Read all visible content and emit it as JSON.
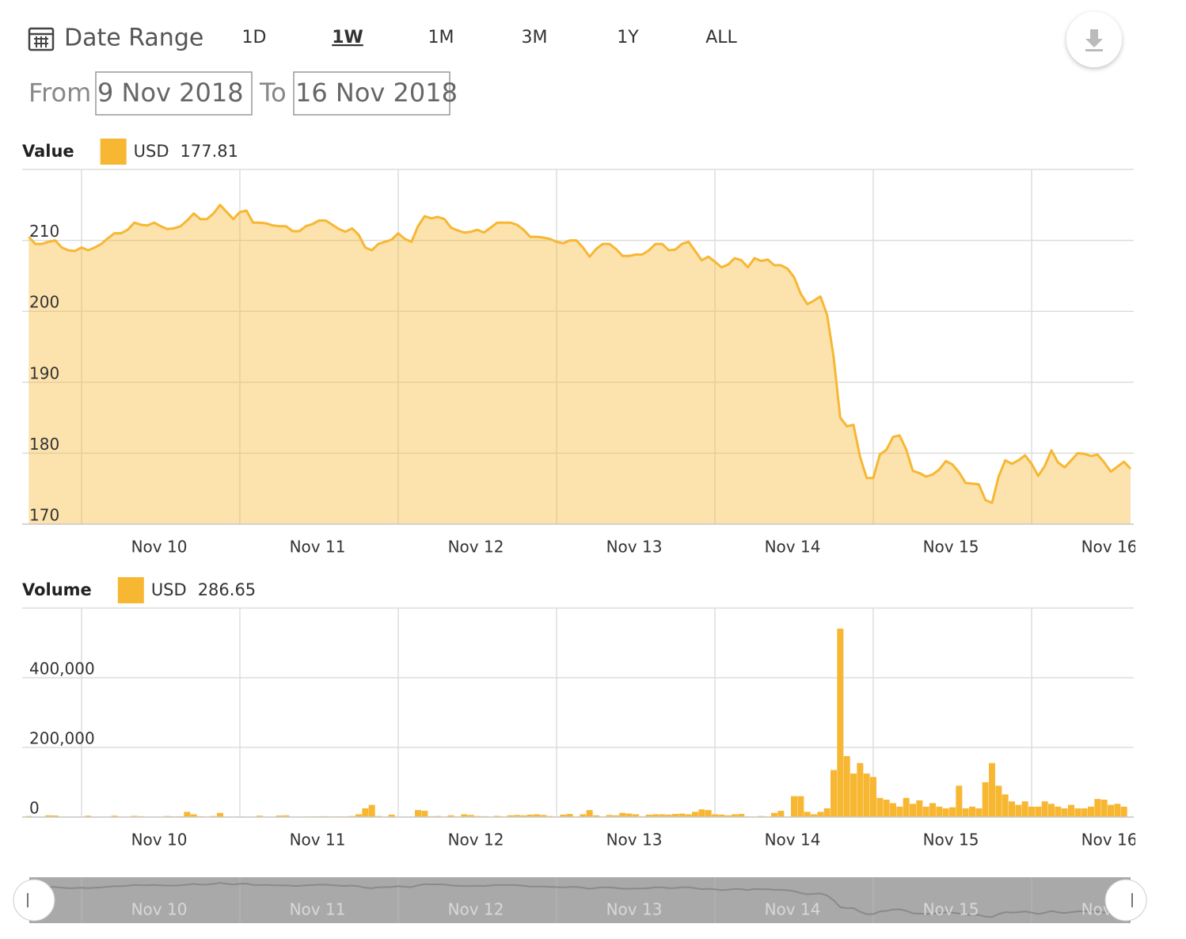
{
  "controls": {
    "label": "Date Range",
    "ranges": [
      "1D",
      "1W",
      "1M",
      "3M",
      "1Y",
      "ALL"
    ],
    "active": "1W",
    "from_label": "From",
    "from": "9 Nov 2018",
    "to_label": "To",
    "to": "16 Nov 2018"
  },
  "chart_data": [
    {
      "type": "area",
      "title": "Value",
      "categories": [
        null,
        null,
        null,
        null,
        null,
        null,
        null,
        null,
        "Nov 10",
        null,
        null,
        null,
        null,
        null,
        null,
        null,
        null,
        null,
        null,
        null,
        null,
        null,
        null,
        null,
        null,
        null,
        null,
        null,
        null,
        null,
        null,
        null,
        "Nov 11",
        null,
        null,
        null,
        null,
        null,
        null,
        null,
        null,
        null,
        null,
        null,
        null,
        null,
        null,
        null,
        null,
        null,
        null,
        null,
        null,
        null,
        null,
        null,
        "Nov 12",
        null,
        null,
        null,
        null,
        null,
        null,
        null,
        null,
        null,
        null,
        null,
        null,
        null,
        null,
        null,
        null,
        null,
        null,
        null,
        null,
        null,
        null,
        null,
        "Nov 13",
        null,
        null,
        null,
        null,
        null,
        null,
        null,
        null,
        null,
        null,
        null,
        null,
        null,
        null,
        null,
        null,
        null,
        null,
        null,
        null,
        null,
        null,
        null,
        "Nov 14",
        null,
        null,
        null,
        null,
        null,
        null,
        null,
        null,
        null,
        null,
        null,
        null,
        null,
        null,
        null,
        null,
        null,
        null,
        null,
        null,
        null,
        null,
        null,
        "Nov 15",
        null,
        null,
        null,
        null,
        null,
        null,
        null,
        null,
        null,
        null,
        null,
        null,
        null,
        null,
        null,
        null,
        null,
        null,
        null,
        null,
        null,
        null,
        null,
        "Nov 16",
        null,
        null,
        null,
        null,
        null,
        null,
        null,
        null,
        null,
        null,
        null,
        null,
        null,
        null,
        null
      ],
      "series": [
        {
          "name": "USD",
          "color": "#f7b733",
          "values": [
            210.5,
            209.5,
            209.5,
            209.8,
            210,
            209,
            208.6,
            208.5,
            209,
            208.6,
            209,
            209.5,
            210.3,
            211,
            211,
            211.5,
            212.5,
            212.2,
            212.1,
            212.5,
            212,
            211.6,
            211.7,
            212,
            212.8,
            213.8,
            213,
            213,
            213.8,
            215,
            214,
            213,
            214,
            214.2,
            212.5,
            212.5,
            212.4,
            212.1,
            212,
            212,
            211.3,
            211.3,
            212,
            212.3,
            212.8,
            212.8,
            212.2,
            211.6,
            211.2,
            211.7,
            210.8,
            209,
            208.6,
            209.5,
            209.8,
            210.1,
            211,
            210.2,
            209.8,
            212,
            213.4,
            213.1,
            213.3,
            213,
            211.8,
            211.4,
            211.1,
            211.2,
            211.5,
            211.1,
            211.8,
            212.5,
            212.5,
            212.5,
            212.2,
            211.5,
            210.5,
            210.5,
            210.4,
            210.2,
            209.8,
            209.6,
            210,
            210,
            209,
            207.7,
            208.8,
            209.5,
            209.5,
            208.8,
            207.8,
            207.8,
            208,
            208,
            208.6,
            209.5,
            209.5,
            208.6,
            208.7,
            209.5,
            209.8,
            208.5,
            207.2,
            207.7,
            207,
            206.2,
            206.6,
            207.5,
            207.2,
            206.2,
            207.5,
            207.1,
            207.3,
            206.5,
            206.5,
            206,
            204.8,
            202.5,
            201,
            201.5,
            202.1,
            199.5,
            193.5,
            185,
            183.8,
            184,
            179.5,
            176.5,
            176.5,
            179.8,
            180.5,
            182.3,
            182.5,
            180.5,
            177.5,
            177.2,
            176.7,
            177,
            177.7,
            178.9,
            178.4,
            177.3,
            175.8,
            175.7,
            175.6,
            173.4,
            173,
            176.7,
            179,
            178.5,
            179,
            179.7,
            178.5,
            176.8,
            178.2,
            180.4,
            178.7,
            178,
            179,
            180,
            179.9,
            179.6,
            179.8,
            178.7,
            177.4,
            178.1,
            178.8,
            177.81
          ]
        }
      ],
      "ylim": [
        170,
        220
      ],
      "yticks": [
        170,
        180,
        190,
        200,
        210
      ],
      "grid": true
    },
    {
      "type": "bar",
      "title": "Volume",
      "categories": [
        null,
        null,
        null,
        null,
        null,
        null,
        null,
        null,
        "Nov 10",
        null,
        null,
        null,
        null,
        null,
        null,
        null,
        null,
        null,
        null,
        null,
        null,
        null,
        null,
        null,
        null,
        null,
        null,
        null,
        null,
        null,
        null,
        null,
        "Nov 11",
        null,
        null,
        null,
        null,
        null,
        null,
        null,
        null,
        null,
        null,
        null,
        null,
        null,
        null,
        null,
        null,
        null,
        null,
        null,
        null,
        null,
        null,
        null,
        "Nov 12",
        null,
        null,
        null,
        null,
        null,
        null,
        null,
        null,
        null,
        null,
        null,
        null,
        null,
        null,
        null,
        null,
        null,
        null,
        null,
        null,
        null,
        null,
        null,
        "Nov 13",
        null,
        null,
        null,
        null,
        null,
        null,
        null,
        null,
        null,
        null,
        null,
        null,
        null,
        null,
        null,
        null,
        null,
        null,
        null,
        null,
        null,
        null,
        null,
        "Nov 14",
        null,
        null,
        null,
        null,
        null,
        null,
        null,
        null,
        null,
        null,
        null,
        null,
        null,
        null,
        null,
        null,
        null,
        null,
        null,
        null,
        null,
        null,
        null,
        "Nov 15",
        null,
        null,
        null,
        null,
        null,
        null,
        null,
        null,
        null,
        null,
        null,
        null,
        null,
        null,
        null,
        null,
        null,
        null,
        null,
        null,
        null,
        null,
        null,
        "Nov 16",
        null,
        null,
        null,
        null,
        null,
        null,
        null,
        null,
        null,
        null,
        null,
        null,
        null,
        null,
        null
      ],
      "series": [
        {
          "name": "USD",
          "color": "#f7b733",
          "values": [
            3000,
            500,
            1200,
            5000,
            4500,
            800,
            1000,
            500,
            1500,
            4000,
            800,
            1200,
            1000,
            4000,
            1500,
            700,
            3500,
            2500,
            600,
            500,
            900,
            3000,
            2000,
            2500,
            15000,
            8000,
            2500,
            1500,
            3000,
            12000,
            1500,
            800,
            1500,
            900,
            700,
            4000,
            1200,
            1000,
            4500,
            5000,
            900,
            700,
            1500,
            1800,
            2200,
            2500,
            1500,
            2000,
            1800,
            3000,
            8000,
            25000,
            35000,
            3000,
            1500,
            7000,
            1200,
            900,
            1500,
            20000,
            18000,
            2500,
            3000,
            1500,
            5000,
            2000,
            8000,
            6000,
            3000,
            2500,
            1500,
            3500,
            2000,
            5000,
            6000,
            5000,
            7000,
            8000,
            6000,
            3000,
            1500,
            7000,
            9000,
            2000,
            8000,
            20000,
            5000,
            2000,
            6000,
            5000,
            12000,
            10000,
            8000,
            2500,
            7000,
            8000,
            8000,
            7000,
            9000,
            10000,
            8000,
            15000,
            22000,
            20000,
            8000,
            7000,
            5000,
            8000,
            9000,
            1500,
            1200,
            3000,
            2000,
            12000,
            18000,
            1500,
            60000,
            60000,
            15000,
            8000,
            15000,
            25000,
            135000,
            541000,
            175000,
            125000,
            155000,
            125000,
            115000,
            55000,
            50000,
            40000,
            30000,
            55000,
            38000,
            48000,
            30000,
            40000,
            30000,
            25000,
            28000,
            90000,
            25000,
            30000,
            25000,
            100000,
            155000,
            90000,
            65000,
            45000,
            35000,
            45000,
            30000,
            30000,
            45000,
            38000,
            30000,
            25000,
            35000,
            25000,
            25000,
            30000,
            52000,
            50000,
            35000,
            38000,
            30000,
            286.65
          ]
        }
      ],
      "ylim": [
        0,
        600000
      ],
      "yticks": [
        0,
        {
          "value": 200000,
          "label": "200,000"
        },
        {
          "value": 400000,
          "label": "400,000"
        }
      ],
      "grid": true
    }
  ]
}
